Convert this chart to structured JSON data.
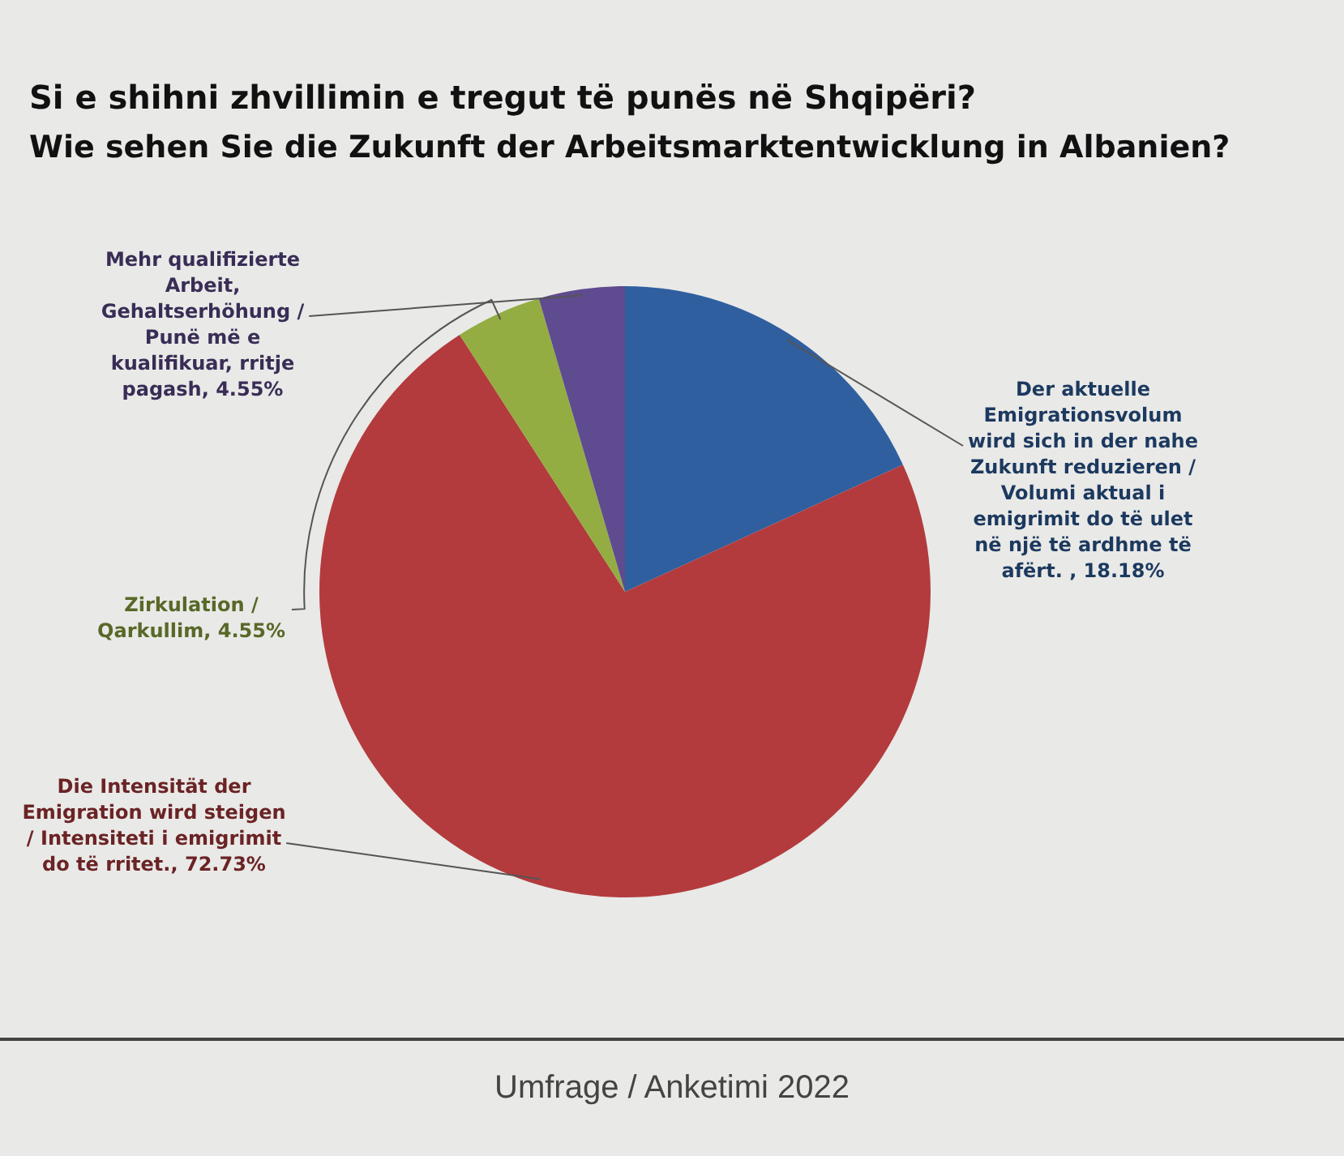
{
  "chart_data": {
    "type": "pie",
    "title": "Si e shihni zhvillimin e tregut të punës në Shqipëri?",
    "subtitle": "Wie sehen Sie die Zukunft der Arbeitsmarktentwicklung in Albanien?",
    "categories": [
      "Der aktuelle Emigrationsvolum wird sich in der nahe Zukunft reduzieren / Volumi aktual i emigrimit do të ulet në një të ardhme të afërt. ",
      "Die Intensität der Emigration wird steigen / Intensiteti i emigrimit do të rritet.",
      "Zirkulation / Qarkullim",
      "Mehr qualifizierte Arbeit, Gehaltserhöhung / Punë më e kualifikuar, rritje pagash"
    ],
    "values": [
      18.18,
      72.73,
      4.55,
      4.55
    ],
    "value_labels": [
      "18.18%",
      "72.73%",
      "4.55%",
      "4.55%"
    ],
    "colors": [
      "#2f5f9f",
      "#b33b3d",
      "#93ad42",
      "#5f4b8f"
    ],
    "legend": false,
    "annotations": [
      "Umfrage / Anketimi 2022"
    ]
  }
}
